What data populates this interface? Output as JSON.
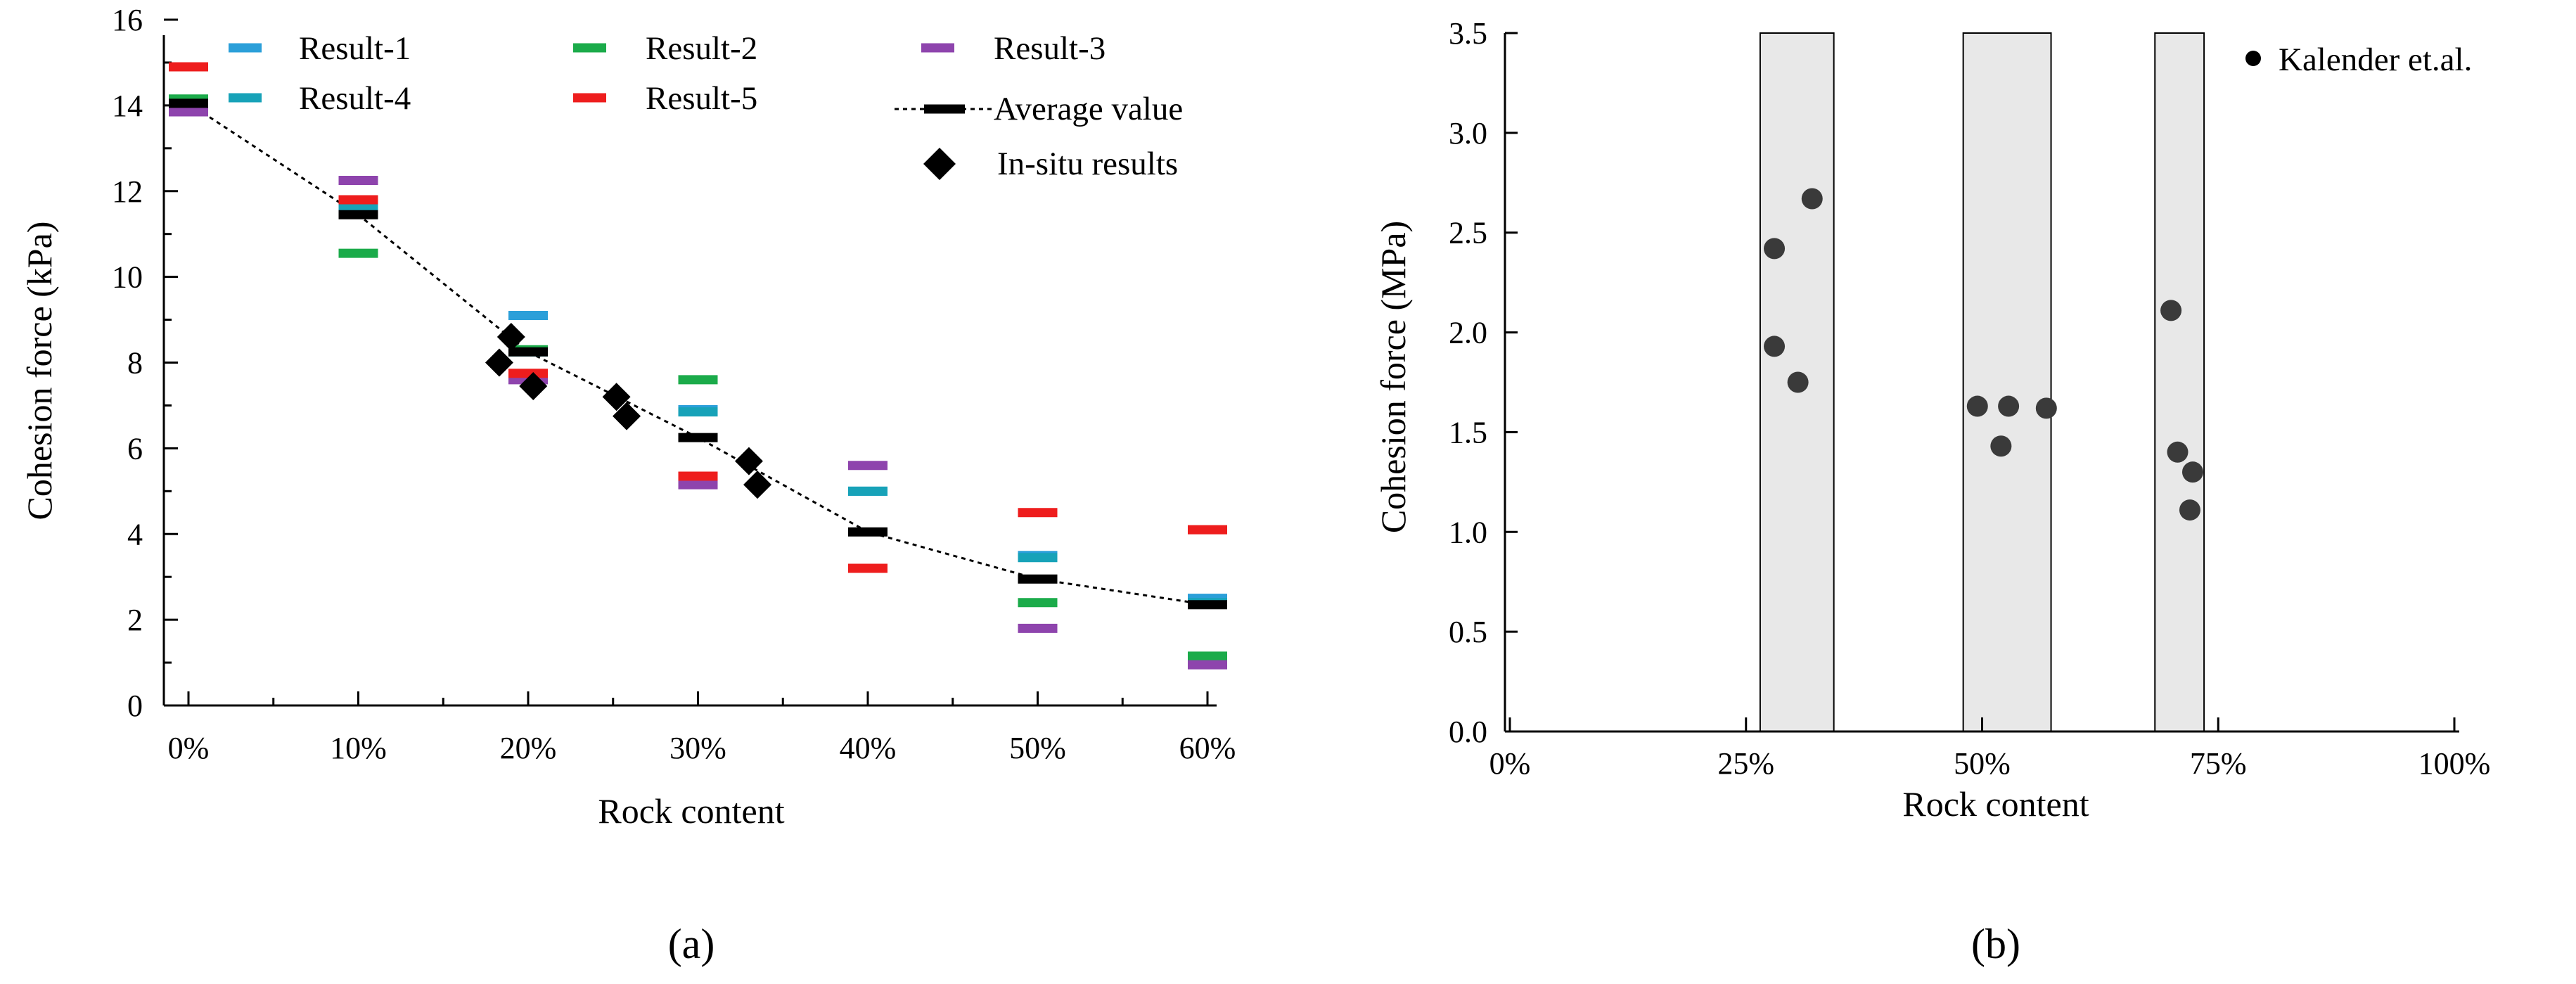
{
  "colors": {
    "result1": "#2b9fd9",
    "result2": "#1bab4a",
    "result3": "#8e44ad",
    "result4": "#17a2b8",
    "result5": "#ee1d1d",
    "average": "#000000",
    "insitu": "#000000",
    "kalender": "#3a3a3a",
    "band_fill": "#e8e8e8"
  },
  "chart_data": [
    {
      "type": "scatter",
      "panel_label": "(a)",
      "title": "",
      "xlabel": "Rock content",
      "ylabel": "Cohesion force (kPa)",
      "x_ticks": [
        0,
        10,
        20,
        30,
        40,
        50,
        60
      ],
      "x_tick_labels": [
        "0%",
        "10%",
        "20%",
        "30%",
        "40%",
        "50%",
        "60%"
      ],
      "y_ticks": [
        0,
        2,
        4,
        6,
        8,
        10,
        12,
        14,
        16
      ],
      "y_tick_labels": [
        "0",
        "2",
        "4",
        "6",
        "8",
        "10",
        "12",
        "14",
        "16"
      ],
      "xlim": [
        0,
        60
      ],
      "ylim": [
        0,
        16
      ],
      "grid": false,
      "series": [
        {
          "name": "Result-1",
          "marker": "dash",
          "color_key": "result1",
          "x": [
            0,
            10,
            20,
            30,
            40,
            50,
            60
          ],
          "values": [
            14.0,
            11.5,
            9.1,
            6.9,
            5.0,
            3.5,
            2.5
          ]
        },
        {
          "name": "Result-2",
          "marker": "dash",
          "color_key": "result2",
          "x": [
            0,
            10,
            20,
            30,
            40,
            50,
            60
          ],
          "values": [
            14.15,
            10.55,
            8.3,
            7.6,
            3.2,
            2.4,
            1.15
          ]
        },
        {
          "name": "Result-3",
          "marker": "dash",
          "color_key": "result3",
          "x": [
            0,
            10,
            20,
            30,
            40,
            50,
            60
          ],
          "values": [
            13.85,
            12.25,
            7.6,
            5.15,
            5.6,
            1.8,
            0.95
          ]
        },
        {
          "name": "Result-4",
          "marker": "dash",
          "color_key": "result4",
          "x": [
            0,
            10,
            20,
            30,
            40,
            50,
            60
          ],
          "values": [
            13.95,
            11.6,
            8.25,
            6.85,
            5.0,
            3.45,
            2.4
          ]
        },
        {
          "name": "Result-5",
          "marker": "dash",
          "color_key": "result5",
          "x": [
            0,
            10,
            20,
            30,
            40,
            50,
            60
          ],
          "values": [
            14.9,
            11.8,
            7.75,
            5.35,
            3.2,
            4.5,
            4.1
          ]
        },
        {
          "name": "Average value",
          "marker": "dash",
          "line": "dotted",
          "color_key": "average",
          "x": [
            0,
            10,
            20,
            30,
            40,
            50,
            60
          ],
          "values": [
            14.05,
            11.45,
            8.25,
            6.25,
            4.05,
            2.95,
            2.35
          ]
        },
        {
          "name": "In-situ results",
          "marker": "diamond",
          "color_key": "insitu",
          "x": [
            18.3,
            19.0,
            20.3,
            25.2,
            25.8,
            33.0,
            33.5
          ],
          "values": [
            8.0,
            8.6,
            7.45,
            7.2,
            6.75,
            5.7,
            5.15
          ]
        }
      ],
      "legend": [
        {
          "label": "Result-1",
          "color_key": "result1",
          "marker": "dash"
        },
        {
          "label": "Result-2",
          "color_key": "result2",
          "marker": "dash"
        },
        {
          "label": "Result-3",
          "color_key": "result3",
          "marker": "dash"
        },
        {
          "label": "Result-4",
          "color_key": "result4",
          "marker": "dash"
        },
        {
          "label": "Result-5",
          "color_key": "result5",
          "marker": "dash"
        },
        {
          "label": "Average value",
          "color_key": "average",
          "marker": "dash-line"
        },
        {
          "label": "In-situ results",
          "color_key": "insitu",
          "marker": "diamond"
        }
      ],
      "legend_position": "top"
    },
    {
      "type": "scatter",
      "panel_label": "(b)",
      "title": "",
      "xlabel": "Rock content",
      "ylabel": "Cohesion force (MPa)",
      "x_ticks": [
        0,
        25,
        50,
        75,
        100
      ],
      "x_tick_labels": [
        "0%",
        "25%",
        "50%",
        "75%",
        "100%"
      ],
      "y_ticks": [
        0.0,
        0.5,
        1.0,
        1.5,
        2.0,
        2.5,
        3.0,
        3.5
      ],
      "y_tick_labels": [
        "0.0",
        "0.5",
        "1.0",
        "1.5",
        "2.0",
        "2.5",
        "3.0",
        "3.5"
      ],
      "xlim": [
        0,
        100
      ],
      "ylim": [
        0,
        3.5
      ],
      "grid": false,
      "bands": [
        [
          26.5,
          34.3
        ],
        [
          48.0,
          57.3
        ],
        [
          68.3,
          73.5
        ]
      ],
      "series": [
        {
          "name": "Kalender et.al.",
          "marker": "circle",
          "color_key": "kalender",
          "x": [
            28.0,
            28.0,
            30.5,
            32.0,
            49.5,
            52.0,
            52.8,
            56.8,
            70.0,
            70.7,
            72.3,
            72.0
          ],
          "values": [
            2.42,
            1.93,
            1.75,
            2.67,
            1.63,
            1.43,
            1.63,
            1.62,
            2.11,
            1.4,
            1.3,
            1.11
          ]
        }
      ],
      "legend": [
        {
          "label": "Kalender et.al.",
          "color_key": "kalender",
          "marker": "circle"
        }
      ],
      "legend_position": "top-right"
    }
  ]
}
